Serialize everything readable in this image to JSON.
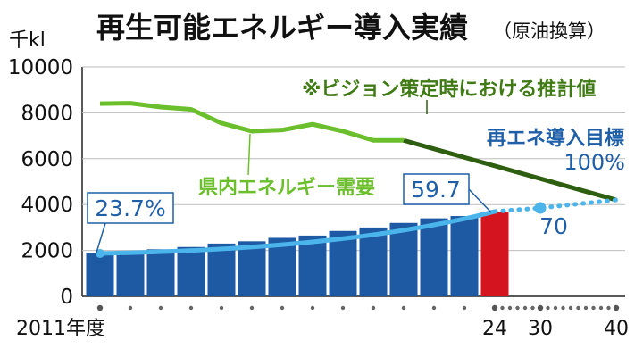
{
  "header": {
    "title": "再生可能エネルギー導入実績",
    "subtitle": "（原油換算）"
  },
  "colors": {
    "bar": "#1e5aa3",
    "bar_highlight": "#d4151f",
    "demand_line": "#6cbf2c",
    "projection_line": "#2e5e0f",
    "achievement_line": "#4bb4ea",
    "target_dots": "#4bb4ea",
    "label_blue": "#1f5fa8",
    "note_green": "#3f7a14"
  },
  "chart_data": {
    "type": "bar",
    "ylabel": "千kl",
    "ylim": [
      0,
      10000
    ],
    "yticks": [
      "0",
      "2000",
      "4000",
      "6000",
      "8000",
      "10000"
    ],
    "x": [
      2011,
      2012,
      2013,
      2014,
      2015,
      2016,
      2017,
      2018,
      2019,
      2020,
      2021,
      2022,
      2023,
      2024
    ],
    "bar_values": [
      1870,
      1950,
      2050,
      2150,
      2300,
      2400,
      2550,
      2650,
      2850,
      3000,
      3200,
      3400,
      3500,
      3700
    ],
    "highlight_x": 2024,
    "xtick_labels": [
      {
        "x": 2011,
        "label": "2011年度"
      },
      {
        "x": 2024,
        "label": "24"
      },
      {
        "x": 2030,
        "label": "30"
      },
      {
        "x": 2040,
        "label": "40"
      }
    ],
    "dot_ticks": [
      2011,
      2012,
      2013,
      2014,
      2015,
      2016,
      2017,
      2018,
      2019,
      2020,
      2021,
      2022,
      2023,
      2024,
      2025,
      2026,
      2027,
      2028,
      2029,
      2030,
      2031,
      2032,
      2033,
      2034,
      2035,
      2036,
      2037,
      2038,
      2039,
      2040
    ],
    "demand": {
      "name": "県内エネルギー需要",
      "x": [
        2011,
        2012,
        2013,
        2014,
        2015,
        2016,
        2017,
        2018,
        2019,
        2020,
        2021
      ],
      "values": [
        8400,
        8420,
        8250,
        8150,
        7550,
        7200,
        7250,
        7500,
        7200,
        6800,
        6800
      ]
    },
    "projection": {
      "name": "※ビジョン策定時における推計値",
      "x": [
        2021,
        2040
      ],
      "values": [
        6800,
        4200
      ]
    },
    "achievement": {
      "x": [
        2011,
        2024
      ],
      "values": [
        1870,
        3700
      ]
    },
    "target": {
      "name": "再エネ導入目標",
      "x": [
        2024,
        2030,
        2040
      ],
      "values": [
        3700,
        3850,
        4200
      ],
      "marker_x": 2030
    },
    "annotations": {
      "start_pct": "23.7%",
      "current_pct": "59.7",
      "mid_pct": "70",
      "target_pct": "100%"
    }
  }
}
